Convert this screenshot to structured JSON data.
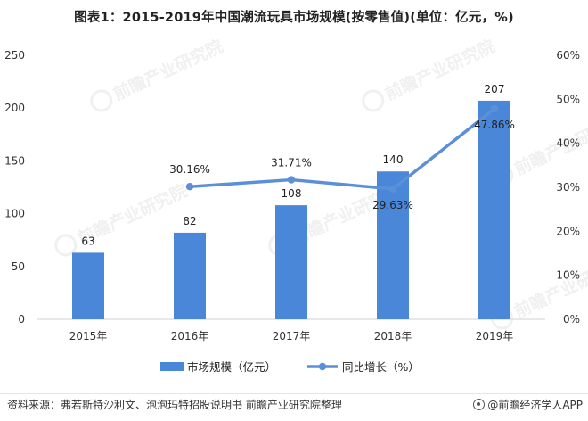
{
  "chart_data": {
    "type": "bar",
    "title": "图表1：2015-2019年中国潮流玩具市场规模(按零售值)(单位：亿元，%)",
    "categories": [
      "2015年",
      "2016年",
      "2017年",
      "2018年",
      "2019年"
    ],
    "series": [
      {
        "name": "市场规模（亿元）",
        "type": "bar",
        "axis": "left",
        "values": [
          63,
          82,
          108,
          140,
          207
        ],
        "labels": [
          "63",
          "82",
          "108",
          "140",
          "207"
        ],
        "color": "#4a87d8"
      },
      {
        "name": "同比增长（%）",
        "type": "line",
        "axis": "right",
        "values": [
          null,
          30.16,
          31.71,
          29.63,
          47.86
        ],
        "labels": [
          "",
          "30.16%",
          "31.71%",
          "29.63%",
          "47.86%"
        ],
        "color": "#5b8fd8"
      }
    ],
    "left_axis": {
      "ticks": [
        "0",
        "50",
        "100",
        "150",
        "200",
        "250"
      ],
      "ylim": [
        0,
        250
      ]
    },
    "right_axis": {
      "ticks": [
        "0%",
        "10%",
        "20%",
        "30%",
        "40%",
        "50%",
        "60%"
      ],
      "ylim": [
        0,
        60
      ]
    },
    "grid": false,
    "legend_position": "bottom"
  },
  "footer": {
    "source": "资料来源：弗若斯特沙利文、泡泡玛特招股说明书 前瞻产业研究院整理",
    "brand": "@前瞻经济学人APP"
  },
  "watermark": {
    "text": "前瞻产业研究院"
  }
}
